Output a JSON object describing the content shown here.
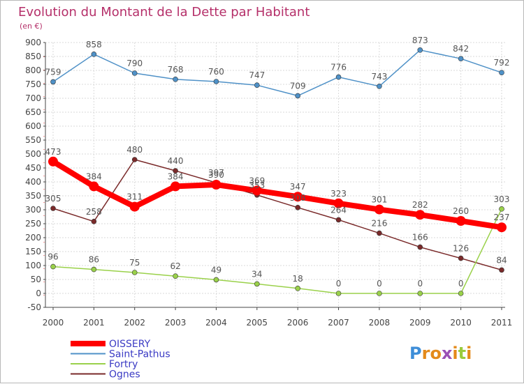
{
  "header": {
    "title": "Evolution du Montant de la Dette par Habitant",
    "subtitle": "(en €)"
  },
  "logo": {
    "text": "Proxiti"
  },
  "chart_data": {
    "type": "line",
    "title": "Evolution du Montant de la Dette par Habitant",
    "subtitle": "(en €)",
    "xlabel": "",
    "ylabel": "",
    "x": [
      "2000",
      "2001",
      "2002",
      "2003",
      "2004",
      "2005",
      "2006",
      "2007",
      "2008",
      "2009",
      "2010",
      "2011"
    ],
    "ylim": [
      -50,
      900
    ],
    "yticks": [
      -50,
      0,
      50,
      100,
      150,
      200,
      250,
      300,
      350,
      400,
      450,
      500,
      550,
      600,
      650,
      700,
      750,
      800,
      850,
      900
    ],
    "grid": true,
    "legend_position": "bottom-left",
    "series": [
      {
        "name": "OISSERY",
        "color": "#ff0000",
        "values": [
          473,
          384,
          311,
          384,
          390,
          369,
          347,
          323,
          301,
          282,
          260,
          237
        ],
        "labels": [
          "473",
          "384",
          "311",
          "384",
          "390",
          "369",
          "347",
          "323",
          "301",
          "282",
          "260",
          "237"
        ]
      },
      {
        "name": "Saint-Pathus",
        "color": "#4f91c7",
        "values": [
          759,
          858,
          790,
          768,
          760,
          747,
          709,
          776,
          743,
          873,
          842,
          792
        ],
        "labels": [
          "759",
          "858",
          "790",
          "768",
          "760",
          "747",
          "709",
          "776",
          "743",
          "873",
          "842",
          "792"
        ]
      },
      {
        "name": "Fortry",
        "color": "#9ad14a",
        "values": [
          96,
          86,
          75,
          62,
          49,
          34,
          18,
          0,
          0,
          0,
          0,
          303
        ],
        "labels": [
          "96",
          "86",
          "75",
          "62",
          "49",
          "34",
          "18",
          "0",
          "0",
          "0",
          "0",
          "303"
        ]
      },
      {
        "name": "Ognes",
        "color": "#7a2a2a",
        "values": [
          305,
          258,
          480,
          440,
          397,
          353,
          308,
          264,
          216,
          166,
          126,
          84
        ],
        "labels": [
          "305",
          "258",
          "480",
          "440",
          "397",
          "353",
          "308",
          "264",
          "216",
          "166",
          "126",
          "84"
        ]
      }
    ]
  }
}
